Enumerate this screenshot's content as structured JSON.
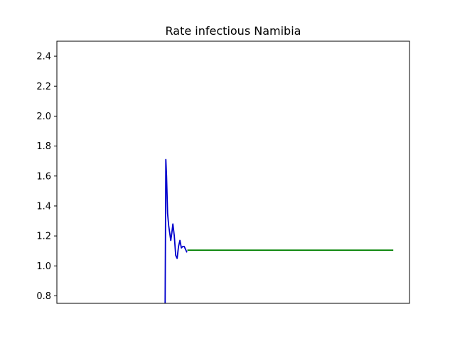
{
  "chart_data": {
    "type": "line",
    "title": "Rate infectious Namibia",
    "xlabel": "",
    "ylabel": "",
    "ylim": [
      0.75,
      2.5
    ],
    "xlim": [
      0,
      100
    ],
    "yticks": [
      "0.8",
      "1.0",
      "1.2",
      "1.4",
      "1.6",
      "1.8",
      "2.0",
      "2.2",
      "2.4"
    ],
    "grid": false,
    "series": [
      {
        "color": "#0000cc",
        "x": [
          30.7,
          30.9,
          31.1,
          31.4,
          31.7,
          32.0,
          32.3,
          32.6,
          32.9,
          33.3,
          33.7,
          34.1,
          34.5,
          34.9,
          35.3,
          35.7,
          36.1,
          36.5,
          36.9
        ],
        "y": [
          0.75,
          1.71,
          1.6,
          1.35,
          1.27,
          1.22,
          1.17,
          1.22,
          1.28,
          1.2,
          1.07,
          1.05,
          1.13,
          1.17,
          1.12,
          1.13,
          1.13,
          1.11,
          1.09
        ]
      },
      {
        "color": "#008000",
        "x": [
          37.0,
          95.4
        ],
        "y": [
          1.105,
          1.105
        ]
      }
    ]
  }
}
